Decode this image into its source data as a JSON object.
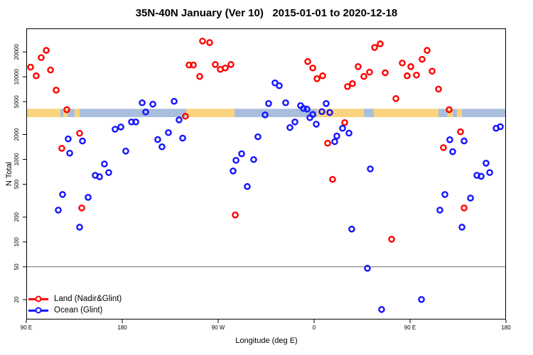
{
  "title": "35N-40N January (Ver 10)   2015-01-01 to 2020-12-18",
  "chart_data": {
    "type": "scatter",
    "title": "35N-40N January (Ver 10)   2015-01-01 to 2020-12-18",
    "xlabel": "Longitude (deg E)",
    "ylabel": "N Total",
    "x_axis": {
      "note": "longitude unwrapped eastward from 90E; 90=90E, 180=180, 270=90W, 360=0, 450=90E, 540=180",
      "range": [
        90,
        540
      ],
      "ticks": [
        {
          "pos": 90,
          "label": "90 E"
        },
        {
          "pos": 180,
          "label": "180"
        },
        {
          "pos": 270,
          "label": "90 W"
        },
        {
          "pos": 360,
          "label": "0"
        },
        {
          "pos": 450,
          "label": "90 E"
        },
        {
          "pos": 540,
          "label": "180"
        }
      ]
    },
    "y_axis": {
      "scale": "log",
      "range": [
        11.5,
        38600
      ],
      "ticks": [
        20,
        50,
        100,
        200,
        500,
        1000,
        2000,
        5000,
        10000,
        20000
      ]
    },
    "reference_hline_n": 50,
    "hline_color": "#6e6e6e",
    "map_band": {
      "n_top": 4100,
      "n_bottom": 3250,
      "land_color": "#FAD37E",
      "ocean_color": "#A9BEDC",
      "segments": [
        {
          "from": 90,
          "to": 122,
          "type": "land"
        },
        {
          "from": 122,
          "to": 124.7,
          "type": "ocean"
        },
        {
          "from": 124.7,
          "to": 128.7,
          "type": "land"
        },
        {
          "from": 128.7,
          "to": 135.3,
          "type": "ocean"
        },
        {
          "from": 135.3,
          "to": 140,
          "type": "land"
        },
        {
          "from": 140,
          "to": 240,
          "type": "ocean"
        },
        {
          "from": 240,
          "to": 285.3,
          "type": "land"
        },
        {
          "from": 285.3,
          "to": 362.7,
          "type": "ocean"
        },
        {
          "from": 362.7,
          "to": 406.7,
          "type": "land"
        },
        {
          "from": 406.7,
          "to": 416,
          "type": "ocean"
        },
        {
          "from": 416,
          "to": 476.7,
          "type": "land"
        },
        {
          "from": 476.7,
          "to": 485.3,
          "type": "ocean"
        },
        {
          "from": 485.3,
          "to": 490,
          "type": "land"
        },
        {
          "from": 490,
          "to": 494,
          "type": "ocean"
        },
        {
          "from": 494,
          "to": 498.7,
          "type": "land"
        },
        {
          "from": 498.7,
          "to": 540,
          "type": "ocean"
        }
      ]
    },
    "series": [
      {
        "name": "Land (Nadir&Glint)",
        "color": "#FF0000",
        "marker": "open-circle",
        "points": [
          [
            108.7,
            20900
          ],
          [
            104,
            17100
          ],
          [
            94,
            13100
          ],
          [
            99.3,
            10300
          ],
          [
            112.7,
            12100
          ],
          [
            118,
            6900
          ],
          [
            128,
            4000
          ],
          [
            140,
            2070
          ],
          [
            123.3,
            1360
          ],
          [
            142,
            258
          ],
          [
            242.7,
            13900
          ],
          [
            246.7,
            13900
          ],
          [
            239.3,
            3330
          ],
          [
            255.3,
            27100
          ],
          [
            262,
            26000
          ],
          [
            267.3,
            14100
          ],
          [
            272,
            12300
          ],
          [
            276.7,
            12800
          ],
          [
            282,
            14100
          ],
          [
            252.7,
            10100
          ],
          [
            286,
            212
          ],
          [
            354,
            15300
          ],
          [
            358.7,
            12800
          ],
          [
            362.7,
            9500
          ],
          [
            368,
            10300
          ],
          [
            372.7,
            1570
          ],
          [
            377.3,
            573
          ],
          [
            388.7,
            2790
          ],
          [
            391.3,
            7630
          ],
          [
            396,
            8280
          ],
          [
            401.3,
            13300
          ],
          [
            406.7,
            10100
          ],
          [
            412,
            11400
          ],
          [
            416.7,
            22700
          ],
          [
            422,
            25100
          ],
          [
            426.7,
            11200
          ],
          [
            432.7,
            108
          ],
          [
            436.7,
            5450
          ],
          [
            442.7,
            14700
          ],
          [
            447.3,
            10300
          ],
          [
            450.7,
            13300
          ],
          [
            456,
            10500
          ],
          [
            461.3,
            16300
          ],
          [
            466,
            20900
          ],
          [
            470.7,
            11700
          ],
          [
            476.7,
            7100
          ],
          [
            481.3,
            1390
          ],
          [
            486.7,
            4000
          ],
          [
            497.3,
            2160
          ],
          [
            500.7,
            258
          ]
        ]
      },
      {
        "name": "Ocean (Glint)",
        "color": "#1414FF",
        "marker": "open-circle",
        "points": [
          [
            129.3,
            1770
          ],
          [
            142.7,
            1670
          ],
          [
            130.7,
            1190
          ],
          [
            124,
            376
          ],
          [
            148,
            347
          ],
          [
            120,
            243
          ],
          [
            140,
            151
          ],
          [
            154.7,
            641
          ],
          [
            158.7,
            616
          ],
          [
            163.3,
            880
          ],
          [
            167.3,
            693
          ],
          [
            173.3,
            2320
          ],
          [
            178.7,
            2470
          ],
          [
            183.3,
            1260
          ],
          [
            188.7,
            2840
          ],
          [
            192.7,
            2840
          ],
          [
            198.7,
            4850
          ],
          [
            202,
            3750
          ],
          [
            208.7,
            4660
          ],
          [
            213.3,
            1740
          ],
          [
            217.3,
            1420
          ],
          [
            223.3,
            2110
          ],
          [
            228.7,
            5050
          ],
          [
            233.3,
            3010
          ],
          [
            236.7,
            1810
          ],
          [
            284,
            724
          ],
          [
            286.7,
            975
          ],
          [
            292,
            1170
          ],
          [
            297.3,
            469
          ],
          [
            303.3,
            995
          ],
          [
            307.3,
            1880
          ],
          [
            314,
            3460
          ],
          [
            317.3,
            4750
          ],
          [
            323.3,
            8440
          ],
          [
            327.3,
            7800
          ],
          [
            333.3,
            4850
          ],
          [
            337.3,
            2430
          ],
          [
            342,
            2840
          ],
          [
            347.3,
            4480
          ],
          [
            350,
            4140
          ],
          [
            353.3,
            4060
          ],
          [
            356,
            3200
          ],
          [
            358.7,
            3500
          ],
          [
            362,
            2670
          ],
          [
            367.3,
            3790
          ],
          [
            371.3,
            4750
          ],
          [
            374.7,
            3700
          ],
          [
            379.3,
            1640
          ],
          [
            381.3,
            1920
          ],
          [
            386.7,
            2380
          ],
          [
            392.7,
            2080
          ],
          [
            395.3,
            143
          ],
          [
            410,
            48
          ],
          [
            412.7,
            767
          ],
          [
            423.3,
            15.2
          ],
          [
            460.7,
            20.1
          ],
          [
            478,
            243
          ],
          [
            482.7,
            376
          ],
          [
            487.3,
            1730
          ],
          [
            490,
            1240
          ],
          [
            498.7,
            151
          ],
          [
            500.7,
            1670
          ],
          [
            506.7,
            340
          ],
          [
            512.7,
            641
          ],
          [
            516.7,
            624
          ],
          [
            521.3,
            900
          ],
          [
            524.7,
            693
          ],
          [
            530.7,
            2380
          ],
          [
            534.7,
            2490
          ]
        ]
      }
    ]
  }
}
